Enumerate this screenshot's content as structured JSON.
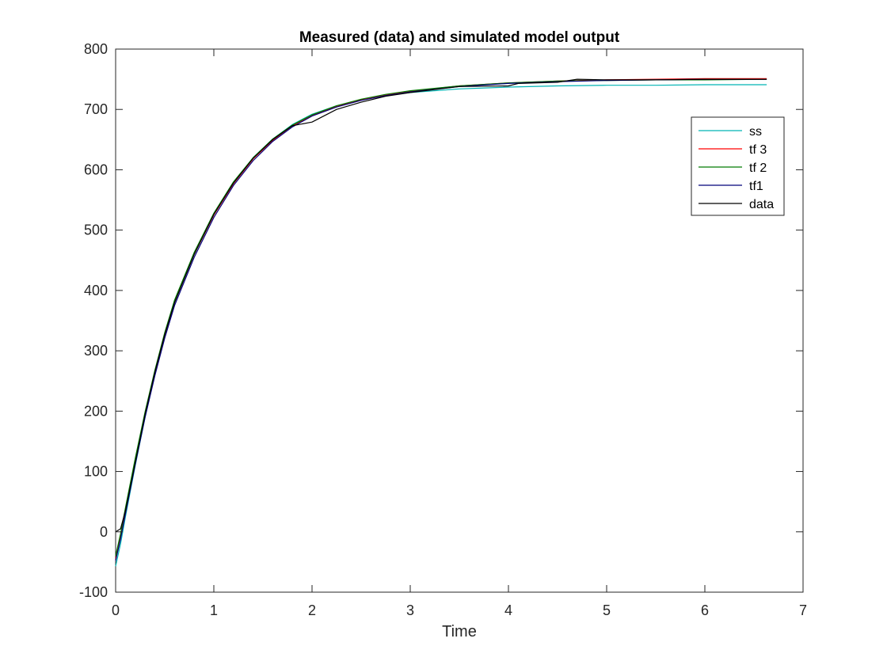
{
  "chart_data": {
    "type": "line",
    "title": "Measured (data) and simulated model output",
    "xlabel": "Time",
    "ylabel": "",
    "xlim": [
      0,
      7
    ],
    "ylim": [
      -100,
      800
    ],
    "xticks": [
      0,
      1,
      2,
      3,
      4,
      5,
      6,
      7
    ],
    "yticks": [
      -100,
      0,
      100,
      200,
      300,
      400,
      500,
      600,
      700,
      800
    ],
    "grid": false,
    "legend_position": "top-right",
    "series": [
      {
        "name": "ss",
        "color": "#00b3b3",
        "x": [
          0,
          0.05,
          0.1,
          0.2,
          0.3,
          0.4,
          0.5,
          0.6,
          0.8,
          1.0,
          1.2,
          1.4,
          1.6,
          1.8,
          2.0,
          2.25,
          2.5,
          2.75,
          3.0,
          3.5,
          4.0,
          4.5,
          5.0,
          5.5,
          6.0,
          6.63
        ],
        "y": [
          -57,
          -20,
          25,
          110,
          190,
          262,
          325,
          380,
          460,
          527,
          578,
          620,
          651,
          675,
          692,
          706,
          716,
          723,
          728,
          734,
          737,
          739,
          740,
          740,
          741,
          741
        ]
      },
      {
        "name": "tf 3",
        "color": "#ff0000",
        "x": [
          0,
          0.05,
          0.1,
          0.2,
          0.3,
          0.4,
          0.5,
          0.6,
          0.8,
          1.0,
          1.2,
          1.4,
          1.6,
          1.8,
          2.0,
          2.25,
          2.5,
          2.75,
          3.0,
          3.5,
          4.0,
          4.5,
          5.0,
          5.5,
          6.0,
          6.63
        ],
        "y": [
          -45,
          -8,
          35,
          117,
          195,
          264,
          326,
          380,
          460,
          525,
          577,
          618,
          649,
          673,
          690,
          705,
          716,
          724,
          730,
          739,
          744,
          747,
          749,
          750,
          751,
          751
        ]
      },
      {
        "name": "tf 2",
        "color": "#007a00",
        "x": [
          0,
          0.05,
          0.1,
          0.2,
          0.3,
          0.4,
          0.5,
          0.6,
          0.8,
          1.0,
          1.2,
          1.4,
          1.6,
          1.8,
          2.0,
          2.25,
          2.5,
          2.75,
          3.0,
          3.5,
          4.0,
          4.5,
          5.0,
          5.5,
          6.0,
          6.63
        ],
        "y": [
          -40,
          -3,
          40,
          122,
          199,
          268,
          330,
          384,
          463,
          528,
          580,
          620,
          651,
          674,
          691,
          706,
          717,
          725,
          731,
          739,
          744,
          747,
          748,
          749,
          749,
          750
        ]
      },
      {
        "name": "tf1",
        "color": "#00007a",
        "x": [
          0,
          0.05,
          0.1,
          0.2,
          0.3,
          0.4,
          0.5,
          0.6,
          0.8,
          1.0,
          1.2,
          1.4,
          1.6,
          1.8,
          2.0,
          2.25,
          2.5,
          2.75,
          3.0,
          3.5,
          4.0,
          4.5,
          5.0,
          5.5,
          6.0,
          6.63
        ],
        "y": [
          -48,
          -12,
          30,
          112,
          190,
          259,
          321,
          375,
          455,
          521,
          574,
          615,
          647,
          671,
          689,
          704,
          715,
          723,
          729,
          738,
          743,
          746,
          748,
          749,
          750,
          750
        ]
      },
      {
        "name": "data",
        "color": "#000000",
        "x": [
          0,
          0.05,
          0.1,
          0.2,
          0.3,
          0.4,
          0.5,
          0.6,
          0.8,
          1.0,
          1.2,
          1.4,
          1.6,
          1.8,
          2.0,
          2.25,
          2.5,
          2.75,
          3.0,
          3.5,
          4.0,
          4.1,
          4.5,
          4.7,
          5.0,
          5.5,
          6.0,
          6.63
        ],
        "y": [
          0,
          5,
          35,
          115,
          195,
          265,
          327,
          380,
          460,
          526,
          578,
          619,
          650,
          673,
          679,
          700,
          712,
          722,
          728,
          738,
          739,
          743,
          745,
          750,
          749,
          749,
          750,
          750
        ]
      }
    ]
  }
}
